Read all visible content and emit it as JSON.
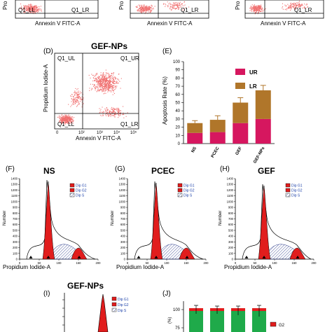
{
  "top_row": {
    "panels": [
      {
        "ul": "",
        "ll": "Q1_LL",
        "lr": "Q1_LR",
        "ylabel": "Pro",
        "xlabel": "Annexin V FITC-A"
      },
      {
        "ul": "",
        "ll": "",
        "lr": "Q1_LR",
        "ylabel": "Pro",
        "xlabel": "Annexin V FITC-A"
      },
      {
        "ul": "",
        "ll": "",
        "lr": "Q1_LR",
        "ylabel": "Pro",
        "xlabel": "Annexin V FITC-A"
      }
    ]
  },
  "panel_d": {
    "letter": "(D)",
    "title": "GEF-NPs",
    "ul": "Q1_UL",
    "ur": "Q1_UR",
    "ll": "Q1_LL",
    "lr": "Q1_LR",
    "ylabel": "Propidium Iodide-A",
    "xlabel": "Annexin V FITC-A",
    "x_ticks": [
      "0",
      "10²",
      "10³",
      "10⁴",
      "10⁵"
    ]
  },
  "panel_e": {
    "letter": "(E)",
    "chart_data": {
      "type": "bar",
      "categories": [
        "NS",
        "PCEC",
        "GEF",
        "GEF-NPs"
      ],
      "series": [
        {
          "name": "UR",
          "values": [
            13,
            14,
            25,
            30
          ],
          "errors": [
            3,
            4,
            5,
            8
          ],
          "color": "#d6175f"
        },
        {
          "name": "LR",
          "values": [
            12,
            15,
            25,
            35
          ],
          "errors": [
            3,
            5,
            6,
            6
          ],
          "color": "#b0762a"
        }
      ],
      "ylabel": "Apoptosis Rate (%)",
      "ylim": [
        0,
        100
      ],
      "yticks": [
        "0",
        "10",
        "20",
        "30",
        "40",
        "50",
        "60",
        "70",
        "80",
        "90",
        "100"
      ],
      "legend": "top-right"
    }
  },
  "cell_cycle": {
    "panels": [
      {
        "letter": "(F)",
        "title": "NS",
        "xlabel": "Propidium Iodide-A"
      },
      {
        "letter": "(G)",
        "title": "PCEC",
        "xlabel": "Propidium Iodide-A"
      },
      {
        "letter": "(H)",
        "title": "GEF",
        "xlabel": "Propidium Iodide-A"
      }
    ],
    "ylabel": "Number",
    "legend": [
      "Dip G1",
      "Dip G2",
      "Dip S"
    ],
    "yticks": [
      "0",
      "100",
      "200",
      "300",
      "400",
      "500",
      "600",
      "700",
      "800",
      "900",
      "1000",
      "1100",
      "1200",
      "1300",
      "1400"
    ],
    "xticks": [
      "0",
      "50",
      "100",
      "150",
      "200"
    ]
  },
  "panel_i": {
    "letter": "(I)",
    "title": "GEF-NPs",
    "legend": [
      "Dip G1",
      "Dip G2",
      "Dip S"
    ]
  },
  "panel_j": {
    "letter": "(J)",
    "yticks": [
      "100",
      "75"
    ],
    "ylabel": "(%)",
    "legend": [
      "G2"
    ]
  }
}
